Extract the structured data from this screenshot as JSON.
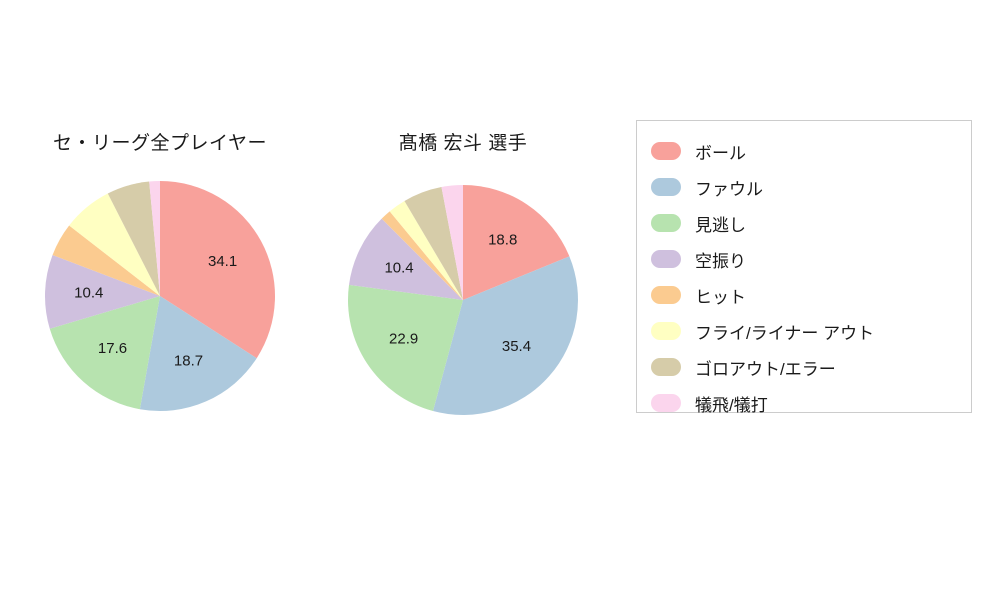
{
  "page": {
    "background": "#ffffff"
  },
  "chart_data": [
    {
      "type": "pie",
      "title": "セ・リーグ全プレイヤー",
      "labels": [
        "ボール",
        "ファウル",
        "見逃し",
        "空振り",
        "ヒット",
        "フライ/ライナー アウト",
        "ゴロアウト/エラー",
        "犠飛/犠打"
      ],
      "values": [
        34.1,
        18.7,
        17.6,
        10.4,
        4.7,
        7.0,
        6.0,
        1.5
      ],
      "shown_value_labels": [
        "34.1",
        "18.7",
        "17.6",
        "10.4"
      ],
      "start_angle_deg": 0,
      "direction": "clockwise",
      "label_threshold": 10,
      "legend_position": "right"
    },
    {
      "type": "pie",
      "title": "髙橋 宏斗  選手",
      "labels": [
        "ボール",
        "ファウル",
        "見逃し",
        "空振り",
        "ヒット",
        "フライ/ライナー アウト",
        "ゴロアウト/エラー",
        "犠飛/犠打"
      ],
      "values": [
        18.8,
        35.4,
        22.9,
        10.4,
        1.5,
        2.5,
        5.5,
        3.0
      ],
      "shown_value_labels": [
        "18.8",
        "35.4",
        "22.9",
        "10.4"
      ],
      "start_angle_deg": 0,
      "direction": "clockwise",
      "label_threshold": 10,
      "legend_position": "right"
    }
  ],
  "legend": {
    "items": [
      {
        "label": "ボール",
        "color": "#F8A19B"
      },
      {
        "label": "ファウル",
        "color": "#ADC9DD"
      },
      {
        "label": "見逃し",
        "color": "#B7E3AF"
      },
      {
        "label": "空振り",
        "color": "#CFC0DE"
      },
      {
        "label": "ヒット",
        "color": "#FBCB90"
      },
      {
        "label": "フライ/ライナー アウト",
        "color": "#FFFFC2"
      },
      {
        "label": "ゴロアウト/エラー",
        "color": "#D6CCA9"
      },
      {
        "label": "犠飛/犠打",
        "color": "#FBD5ED"
      }
    ]
  }
}
